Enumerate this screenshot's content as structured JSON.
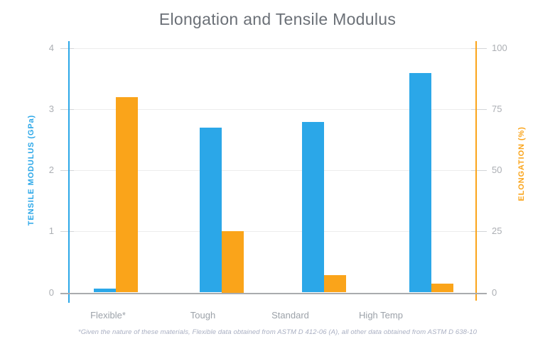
{
  "chart_data": {
    "type": "bar",
    "title": "Elongation and Tensile Modulus",
    "categories": [
      "Flexible*",
      "Tough",
      "Standard",
      "High Temp"
    ],
    "series": [
      {
        "name": "Tensile Modulus",
        "axis": "left",
        "unit": "GPa",
        "color": "#2ba7e8",
        "values": [
          0.06,
          2.7,
          2.8,
          3.6
        ]
      },
      {
        "name": "Elongation",
        "axis": "right",
        "unit": "%",
        "color": "#faa41a",
        "values": [
          80,
          25,
          7,
          3.5
        ]
      }
    ],
    "left_axis": {
      "label": "TENSILE MODULUS (GPa)",
      "ticks": [
        0,
        1,
        2,
        3,
        4
      ],
      "range": [
        0,
        4
      ],
      "color": "#2ba7e8"
    },
    "right_axis": {
      "label": "ELONGATION (%)",
      "ticks": [
        0,
        25,
        50,
        75,
        100
      ],
      "range": [
        0,
        100
      ],
      "color": "#faa41a"
    },
    "grid": true,
    "legend": "none",
    "footnote": "*Given the nature of these materials, Flexible data obtained from ASTM D 412-06 (A), all other data obtained from ASTM D 638-10"
  }
}
